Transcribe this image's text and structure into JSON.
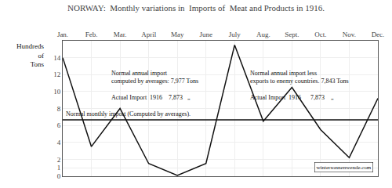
{
  "chart_data": {
    "type": "line",
    "title": "NORWAY:  Monthly variations in  Imports of  Meat and Products in 1916.",
    "ylabel": "Hundreds\nof\nTons",
    "categories": [
      "Jan.",
      "Feb.",
      "Mar.",
      "April",
      "May",
      "June",
      "July",
      "Aug.",
      "Sept.",
      "Oct.",
      "Nov.",
      "Dec."
    ],
    "values": [
      14.0,
      3.5,
      8.0,
      1.5,
      0.1,
      1.5,
      15.5,
      6.5,
      10.5,
      5.5,
      2.2,
      9.2
    ],
    "color": "#111111",
    "normal_line": {
      "value": 6.65,
      "label": "Normal monthly import (Computed by averages)."
    },
    "annotations": [
      "Normal annual import\ncomputed by averages: 7,977 Tons\n\nActual Import  1916    7,873   „",
      "Normal annual import less\nexports to enemy countries. 7,843 Tons\n\nActual Import  1916      7,873    „",
      "wintersonnenwende.com"
    ],
    "ylim": [
      0,
      16
    ],
    "yticks": [
      0,
      1,
      2,
      4,
      6,
      8,
      10,
      12,
      14
    ],
    "grid": true
  }
}
